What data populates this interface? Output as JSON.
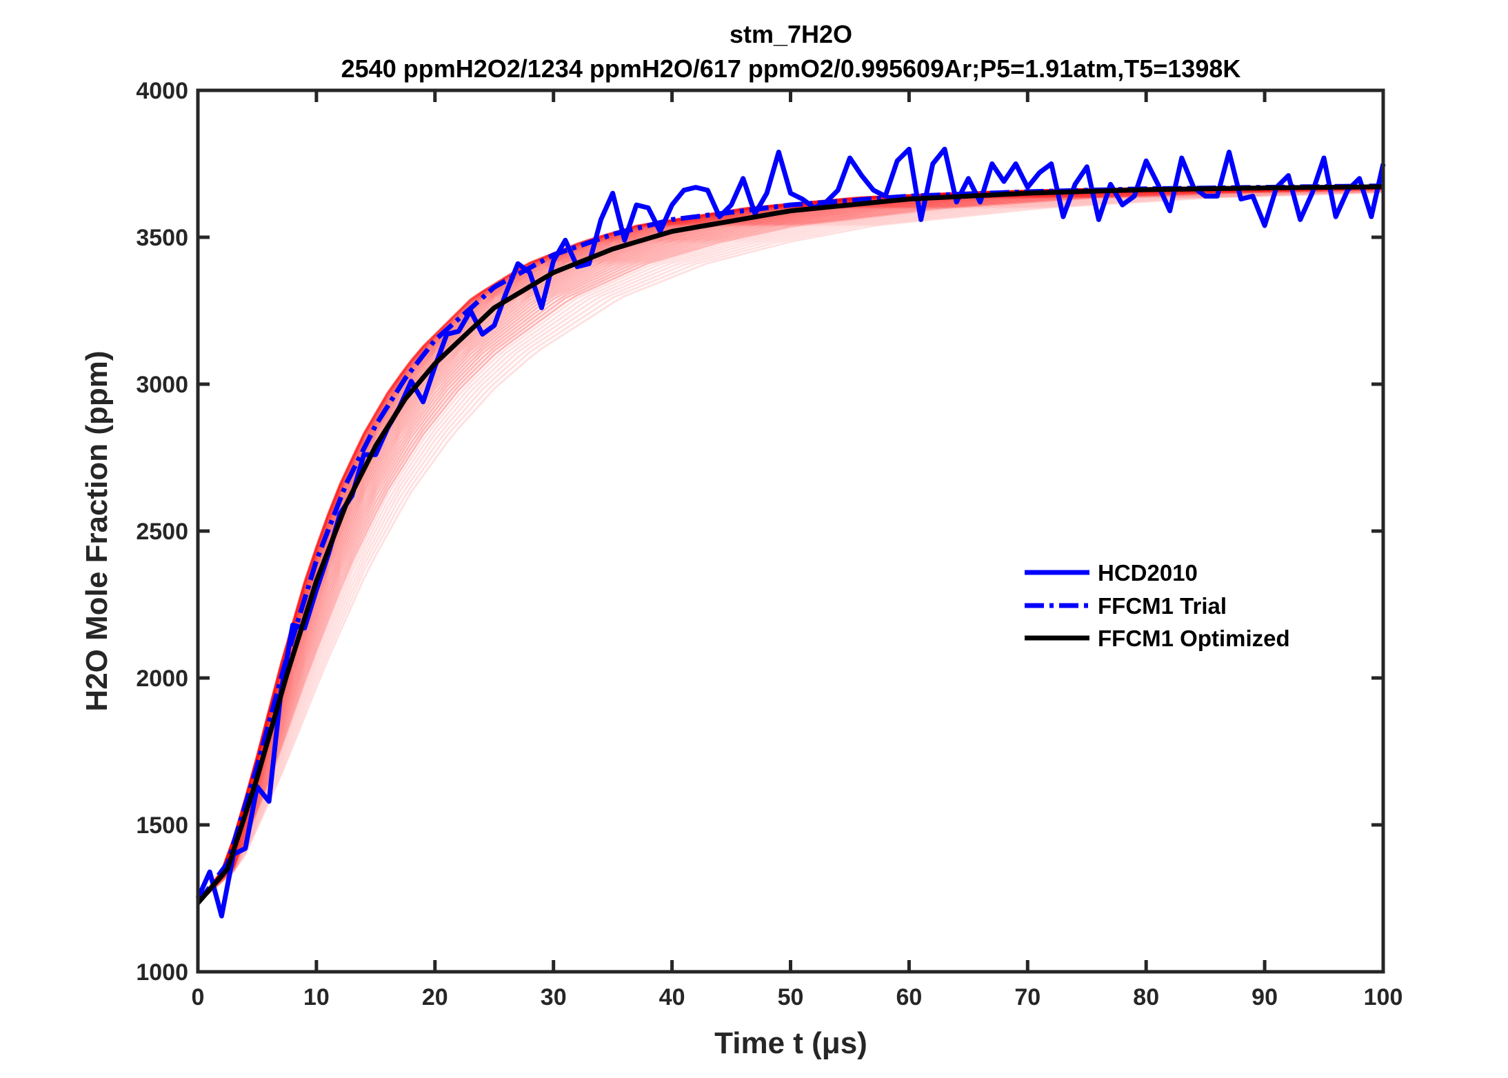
{
  "chart_data": {
    "type": "line",
    "title": "stm_7H2O",
    "subtitle": "2540 ppmH2O2/1234 ppmH2O/617 ppmO2/0.995609Ar;P5=1.91atm,T5=1398K",
    "xlabel": "Time t (μs)",
    "ylabel": "H2O Mole Fraction (ppm)",
    "xlim": [
      0,
      100
    ],
    "ylim": [
      1000,
      4000
    ],
    "xticks": [
      "0",
      "10",
      "20",
      "30",
      "40",
      "50",
      "60",
      "70",
      "80",
      "90",
      "100"
    ],
    "yticks": [
      "1000",
      "1500",
      "2000",
      "2500",
      "3000",
      "3500",
      "4000"
    ],
    "grid": false,
    "legend_position": "right",
    "series": [
      {
        "name": "HCD2010",
        "color": "#0000ff",
        "style": "solid",
        "x": [
          0,
          1,
          2,
          3,
          4,
          5,
          6,
          7,
          8,
          9,
          10,
          11,
          12,
          13,
          14,
          15,
          16,
          17,
          18,
          19,
          20,
          21,
          22,
          23,
          24,
          25,
          26,
          27,
          28,
          29,
          30,
          31,
          32,
          33,
          34,
          35,
          36,
          37,
          38,
          39,
          40,
          41,
          42,
          43,
          44,
          45,
          46,
          47,
          48,
          49,
          50,
          51,
          52,
          53,
          54,
          55,
          56,
          57,
          58,
          59,
          60,
          61,
          62,
          63,
          64,
          65,
          66,
          67,
          68,
          69,
          70,
          71,
          72,
          73,
          74,
          75,
          76,
          77,
          78,
          79,
          80,
          81,
          82,
          83,
          84,
          85,
          86,
          87,
          88,
          89,
          90,
          91,
          92,
          93,
          94,
          95,
          96,
          97,
          98,
          99,
          100
        ],
        "y": [
          1250,
          1340,
          1190,
          1400,
          1420,
          1630,
          1580,
          1950,
          2180,
          2170,
          2300,
          2420,
          2560,
          2620,
          2760,
          2760,
          2850,
          2920,
          3010,
          2940,
          3060,
          3170,
          3180,
          3250,
          3170,
          3200,
          3310,
          3410,
          3380,
          3260,
          3420,
          3490,
          3400,
          3410,
          3560,
          3650,
          3490,
          3610,
          3600,
          3520,
          3610,
          3660,
          3670,
          3660,
          3570,
          3610,
          3700,
          3580,
          3650,
          3790,
          3650,
          3630,
          3600,
          3620,
          3660,
          3770,
          3710,
          3660,
          3640,
          3760,
          3800,
          3560,
          3750,
          3800,
          3620,
          3700,
          3620,
          3750,
          3690,
          3750,
          3670,
          3720,
          3750,
          3570,
          3680,
          3740,
          3560,
          3680,
          3610,
          3640,
          3760,
          3680,
          3590,
          3770,
          3670,
          3640,
          3640,
          3790,
          3630,
          3640,
          3540,
          3670,
          3710,
          3560,
          3650,
          3770,
          3570,
          3660,
          3700,
          3570,
          3750
        ]
      },
      {
        "name": "FFCM1 Trial",
        "color": "#0000ff",
        "style": "dash-dot",
        "x": [
          0,
          2.5,
          5,
          7.5,
          10,
          12.5,
          15,
          17.5,
          20,
          25,
          30,
          35,
          40,
          50,
          60,
          70,
          80,
          90,
          100
        ],
        "y": [
          1234,
          1370,
          1700,
          2070,
          2400,
          2660,
          2860,
          3020,
          3150,
          3330,
          3440,
          3510,
          3560,
          3610,
          3640,
          3655,
          3665,
          3670,
          3675
        ]
      },
      {
        "name": "FFCM1 Optimized",
        "color": "#000000",
        "style": "solid",
        "x": [
          0,
          2.5,
          5,
          7.5,
          10,
          12.5,
          15,
          17.5,
          20,
          25,
          30,
          35,
          40,
          50,
          60,
          70,
          80,
          90,
          100
        ],
        "y": [
          1234,
          1350,
          1660,
          2010,
          2330,
          2590,
          2790,
          2950,
          3070,
          3260,
          3380,
          3460,
          3520,
          3590,
          3630,
          3650,
          3662,
          3668,
          3672
        ]
      }
    ],
    "ensemble_color": "#ff0000"
  }
}
